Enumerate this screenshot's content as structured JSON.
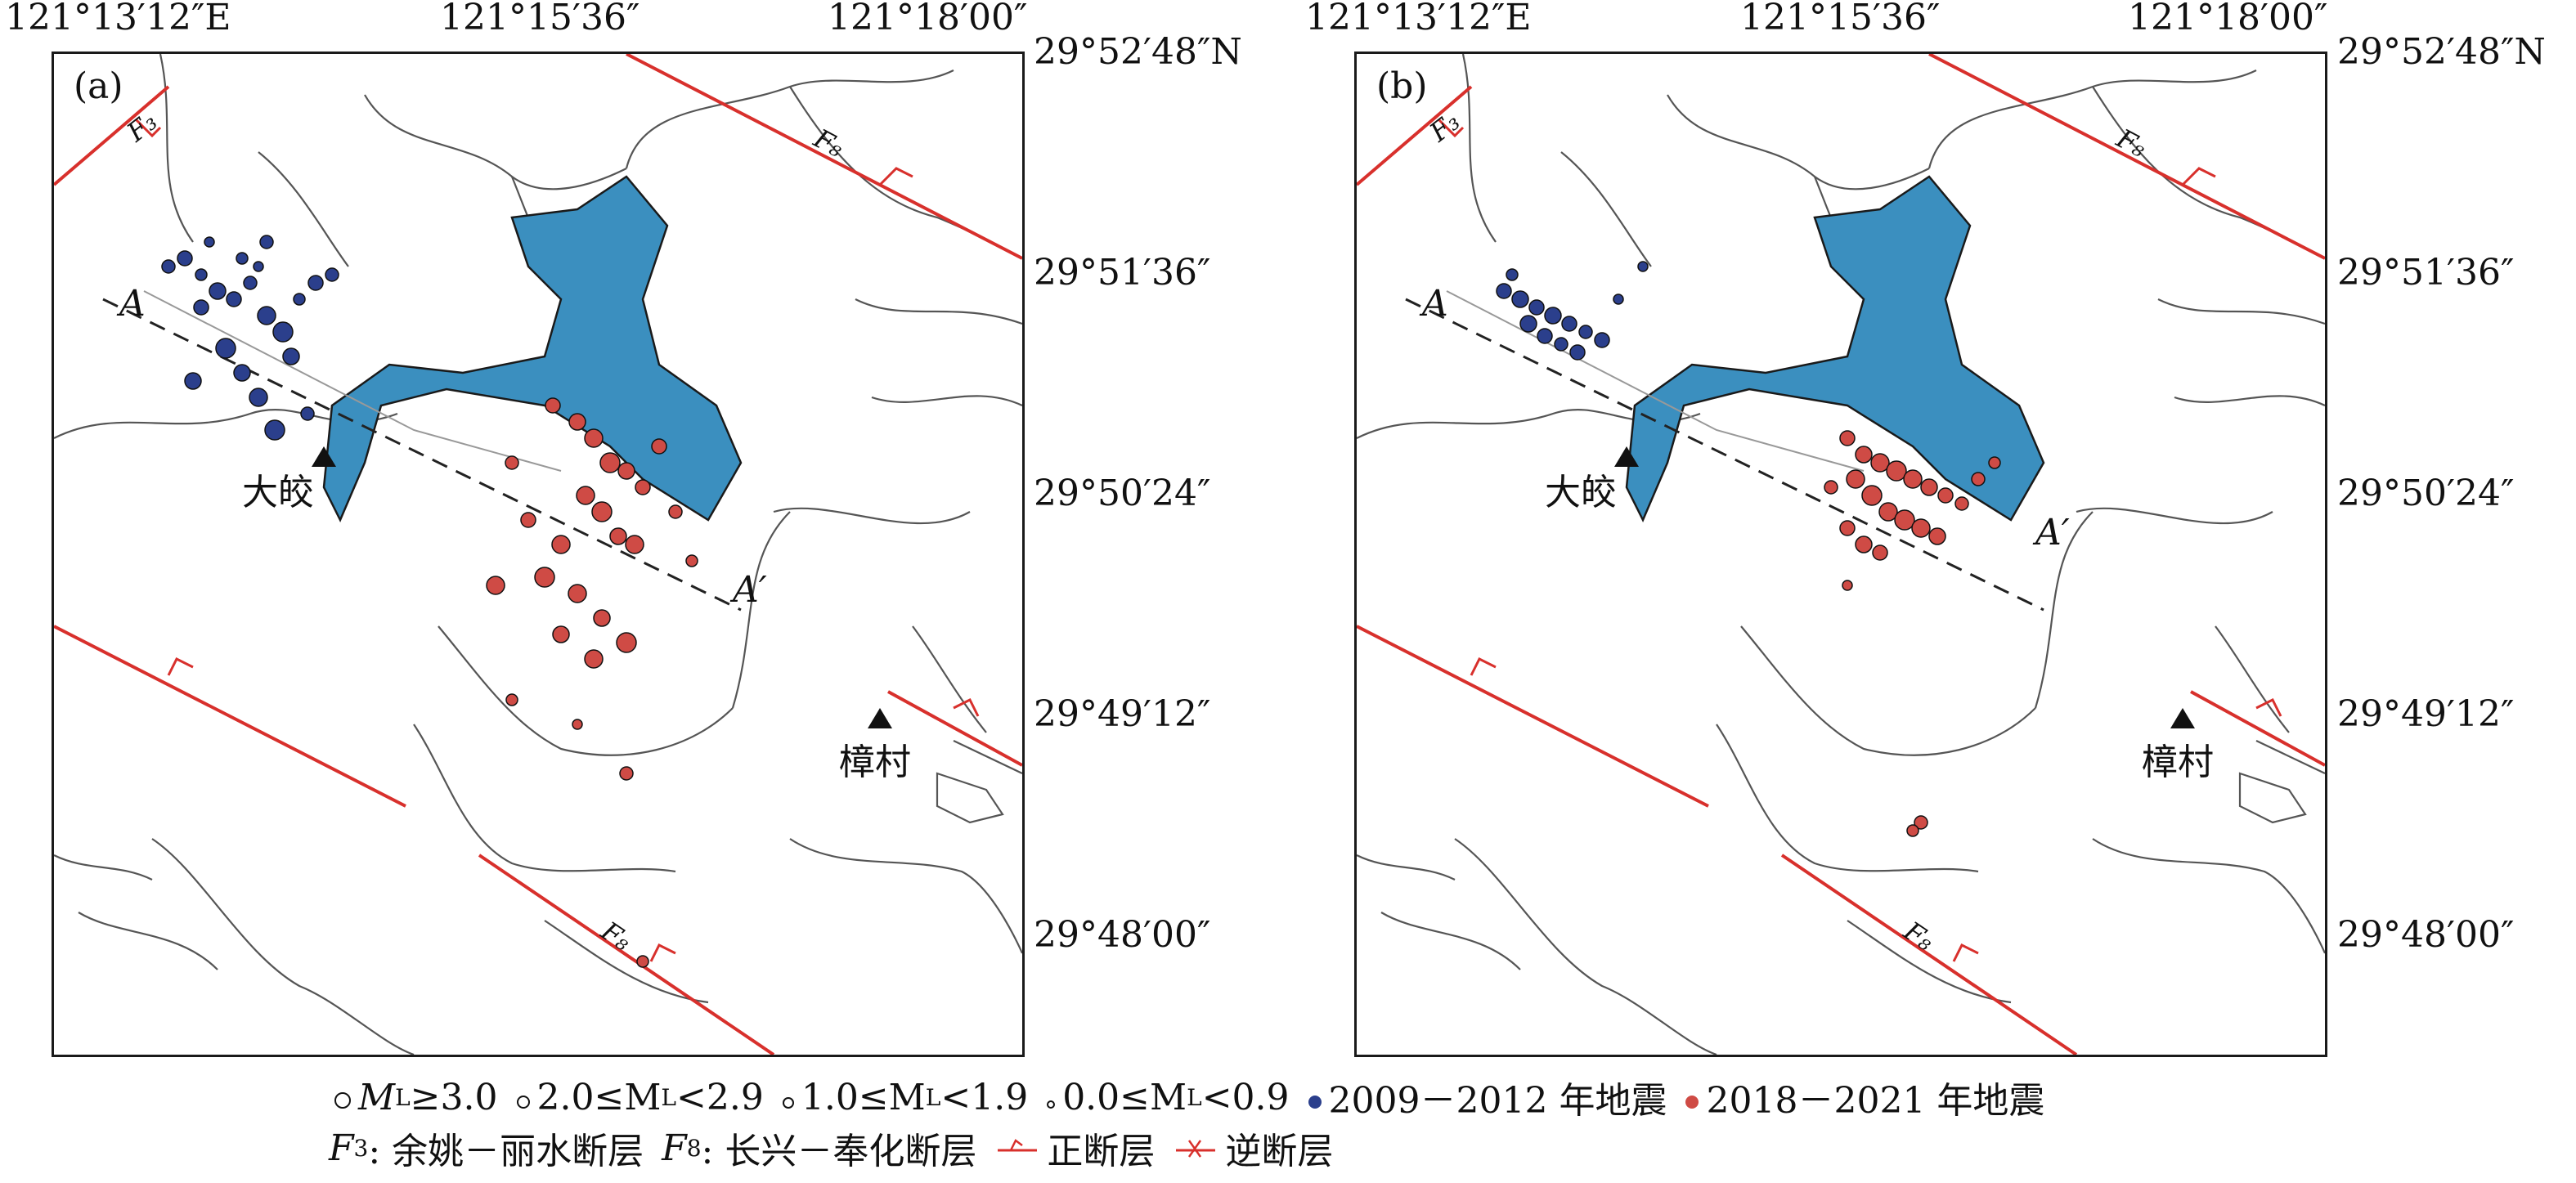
{
  "axis": {
    "top_ticks": [
      "121°13′12″E",
      "121°15′36″",
      "121°18′00″"
    ],
    "right_ticks": [
      "29°52′48″N",
      "29°51′36″",
      "29°50′24″",
      "29°49′12″",
      "29°48′00″"
    ]
  },
  "panels": [
    {
      "label": "(a)"
    },
    {
      "label": "(b)"
    }
  ],
  "map_labels": {
    "f3": "F₃",
    "f8": "F₈",
    "profile_start": "A",
    "profile_end": "A′",
    "town_dajiao": "大皎",
    "town_zhangcun": "樟村"
  },
  "legend": {
    "mag_1_pre": "M",
    "mag_1_sub": "L",
    "mag_1_post": "≥3.0",
    "mag_2_pre": "2.0≤M",
    "mag_2_sub": "L",
    "mag_2_post": "<2.9",
    "mag_3_pre": "1.0≤M",
    "mag_3_sub": "L",
    "mag_3_post": "<1.9",
    "mag_4_pre": "0.0≤M",
    "mag_4_sub": "L",
    "mag_4_post": "<0.9",
    "period_1": "2009－2012 年地震",
    "period_2": "2018－2021 年地震",
    "f3_pre": "F",
    "f3_sub": "3",
    "f3_name": ": 余姚－丽水断层",
    "f8_pre": "F",
    "f8_sub": "8",
    "f8_name": ": 长兴－奉化断层",
    "normal_fault": "正断层",
    "reverse_fault": "逆断层"
  },
  "colors": {
    "period_2009_2012": "#2b3f8c",
    "period_2018_2021": "#cf4b45",
    "reservoir": "#3b8fbf",
    "fault": "#d8302c"
  }
}
